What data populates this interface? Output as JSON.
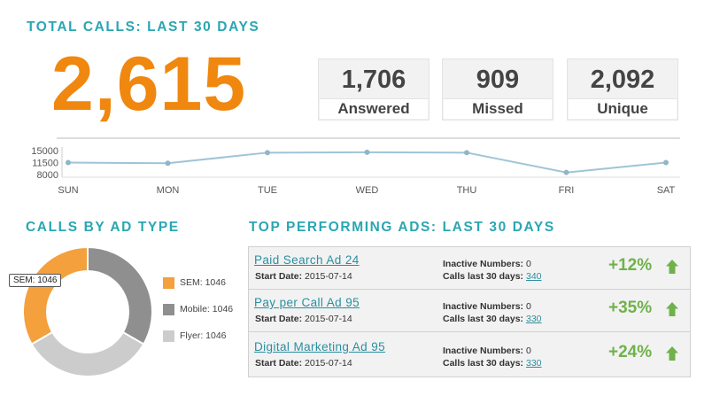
{
  "header": {
    "title": "TOTAL CALLS: LAST 30 DAYS"
  },
  "total_calls": "2,615",
  "stats": [
    {
      "value": "1,706",
      "label": "Answered"
    },
    {
      "value": "909",
      "label": "Missed"
    },
    {
      "value": "2,092",
      "label": "Unique"
    }
  ],
  "colors": {
    "accent": "#2aa6b2",
    "total": "#f0870f",
    "line": "#9fc4d6",
    "positive": "#6fb24a",
    "sem": "#f4a03c",
    "mobile": "#8f8f8f",
    "flyer": "#cccccc"
  },
  "chart_data": [
    {
      "type": "line",
      "title": "",
      "xlabel": "",
      "ylabel": "",
      "categories": [
        "SUN",
        "MON",
        "TUE",
        "WED",
        "THU",
        "FRI",
        "SAT"
      ],
      "values": [
        11500,
        11300,
        14400,
        14500,
        14400,
        8600,
        11500
      ],
      "y_ticks": [
        "15000",
        "11500",
        "8000"
      ],
      "ylim": [
        8000,
        15000
      ],
      "grid": false
    },
    {
      "type": "pie",
      "title": "",
      "labels": [
        "SEM",
        "Mobile",
        "Flyer"
      ],
      "values": [
        1046,
        1046,
        1046
      ],
      "legend": [
        "SEM: 1046",
        "Mobile: 1046",
        "Flyer: 1046"
      ],
      "tooltip": "SEM: 1046",
      "legend_position": "right"
    }
  ],
  "ad_type": {
    "title": "CALLS BY AD TYPE"
  },
  "top_ads": {
    "title": "TOP PERFORMING ADS: LAST 30 DAYS",
    "inactive_label": "Inactive Numbers:",
    "calls_label": "Calls last 30 days:",
    "start_label": "Start Date:",
    "rows": [
      {
        "name": "Paid Search Ad 24",
        "start": "2015-07-14",
        "inactive": "0",
        "calls": "340",
        "change": "+12%"
      },
      {
        "name": "Pay per Call Ad 95",
        "start": "2015-07-14",
        "inactive": "0",
        "calls": "330",
        "change": "+35%"
      },
      {
        "name": "Digital Marketing Ad 95",
        "start": "2015-07-14",
        "inactive": "0",
        "calls": "330",
        "change": "+24%"
      }
    ]
  },
  "icons": {
    "up": "arrow-up-icon"
  }
}
